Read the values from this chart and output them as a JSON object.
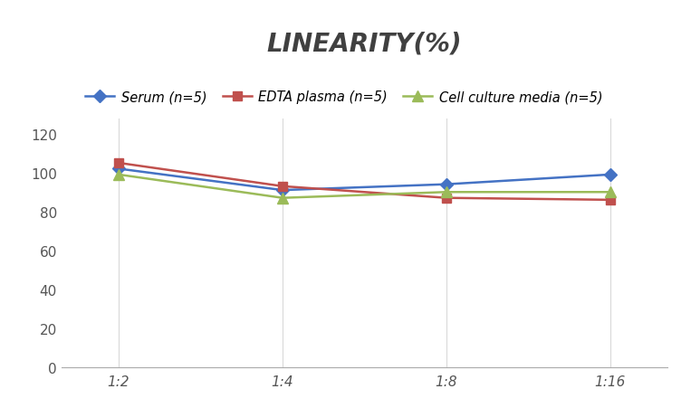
{
  "title": "LINEARITY(%)",
  "x_labels": [
    "1:2",
    "1:4",
    "1:8",
    "1:16"
  ],
  "x_positions": [
    0,
    1,
    2,
    3
  ],
  "series": [
    {
      "label": "Serum (n=5)",
      "values": [
        102,
        91,
        94,
        99
      ],
      "color": "#4472C4",
      "marker": "D",
      "markersize": 7,
      "linewidth": 1.8
    },
    {
      "label": "EDTA plasma (n=5)",
      "values": [
        105,
        93,
        87,
        86
      ],
      "color": "#C0504D",
      "marker": "s",
      "markersize": 7,
      "linewidth": 1.8
    },
    {
      "label": "Cell culture media (n=5)",
      "values": [
        99,
        87,
        90,
        90
      ],
      "color": "#9BBB59",
      "marker": "^",
      "markersize": 8,
      "linewidth": 1.8
    }
  ],
  "ylim": [
    0,
    128
  ],
  "yticks": [
    0,
    20,
    40,
    60,
    80,
    100,
    120
  ],
  "grid_color": "#D9D9D9",
  "background_color": "#FFFFFF",
  "title_fontsize": 20,
  "legend_fontsize": 10.5,
  "tick_fontsize": 11,
  "title_style": "italic",
  "title_weight": "bold",
  "title_color": "#404040"
}
